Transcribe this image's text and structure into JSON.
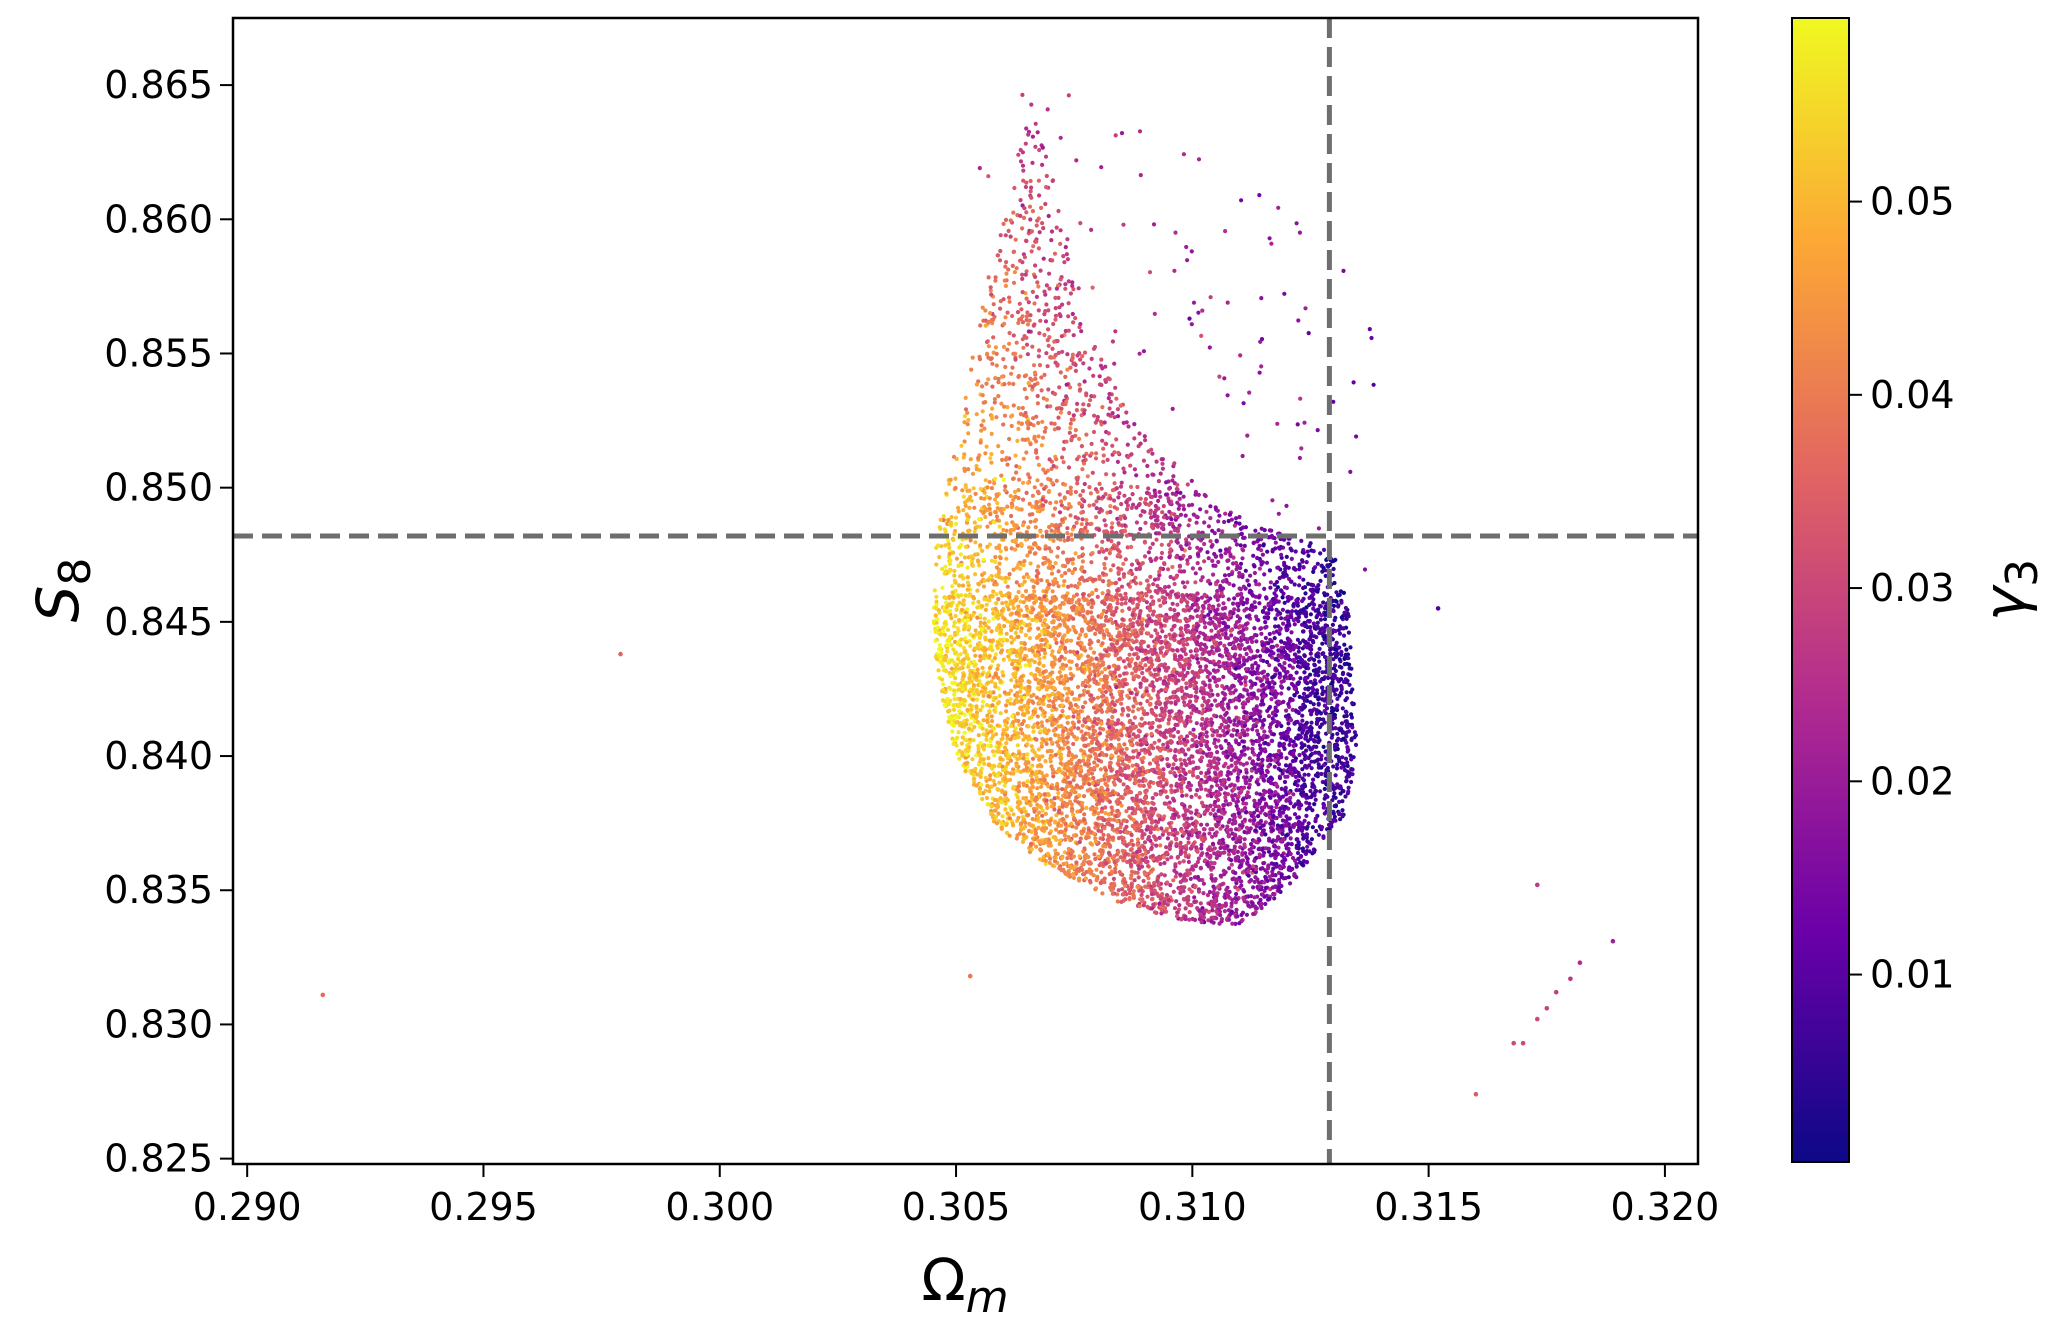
{
  "chart_data": {
    "type": "scatter",
    "title": "",
    "xlabel": "Ω_m",
    "ylabel": "S_8",
    "xlim": [
      0.2897,
      0.3207
    ],
    "ylim": [
      0.8248,
      0.8675
    ],
    "x_ticks": [
      "0.290",
      "0.295",
      "0.300",
      "0.305",
      "0.310",
      "0.315",
      "0.320"
    ],
    "y_ticks": [
      "0.825",
      "0.830",
      "0.835",
      "0.840",
      "0.845",
      "0.850",
      "0.855",
      "0.860",
      "0.865"
    ],
    "grid": false,
    "reference_lines": {
      "vertical_x": 0.3129,
      "horizontal_y": 0.8482,
      "style": "dashed",
      "color": "#6e6e6e"
    },
    "colorbar": {
      "label": "γ_3",
      "colormap": "plasma",
      "range": [
        0.0003,
        0.0595
      ],
      "ticks": [
        "0.01",
        "0.02",
        "0.03",
        "0.04",
        "0.05"
      ],
      "colors": [
        "#0d0887",
        "#6a00a8",
        "#b12a90",
        "#e16462",
        "#fca636",
        "#f0f921"
      ]
    },
    "series": [
      {
        "name": "",
        "cloud": {
          "point_count": 9000,
          "shape": "crescent",
          "left_edge": [
            [
              0.3045,
              0.8455
            ],
            [
              0.3046,
              0.8485
            ],
            [
              0.305,
              0.8515
            ],
            [
              0.3052,
              0.8535
            ],
            [
              0.3055,
              0.8565
            ],
            [
              0.3059,
              0.8595
            ],
            [
              0.3063,
              0.8625
            ],
            [
              0.3066,
              0.8645
            ]
          ],
          "right_edge": [
            [
              0.3066,
              0.8645
            ],
            [
              0.307,
              0.862
            ],
            [
              0.3078,
              0.856
            ],
            [
              0.3088,
              0.8525
            ],
            [
              0.31,
              0.85
            ],
            [
              0.3115,
              0.8485
            ],
            [
              0.3125,
              0.848
            ],
            [
              0.313,
              0.8475
            ],
            [
              0.3133,
              0.8455
            ],
            [
              0.3135,
              0.84
            ],
            [
              0.3132,
              0.8378
            ]
          ],
          "bottom_edge": [
            [
              0.3132,
              0.8378
            ],
            [
              0.312,
              0.835
            ],
            [
              0.311,
              0.8337
            ],
            [
              0.31,
              0.8338
            ],
            [
              0.3085,
              0.8345
            ],
            [
              0.307,
              0.8358
            ],
            [
              0.3058,
              0.8375
            ],
            [
              0.305,
              0.84
            ],
            [
              0.3046,
              0.843
            ],
            [
              0.3045,
              0.8455
            ]
          ],
          "color_gradient": "yellow on the left edge, orange and magenta through the middle, dark purple near x = 0.3125"
        }
      }
    ],
    "outliers": [
      {
        "x": 0.2916,
        "y": 0.8311,
        "c": 0.037
      },
      {
        "x": 0.2979,
        "y": 0.8438,
        "c": 0.036
      },
      {
        "x": 0.3053,
        "y": 0.8318,
        "c": 0.039
      },
      {
        "x": 0.3152,
        "y": 0.8455,
        "c": 0.009
      },
      {
        "x": 0.316,
        "y": 0.8274,
        "c": 0.034
      },
      {
        "x": 0.3168,
        "y": 0.8293,
        "c": 0.03
      },
      {
        "x": 0.317,
        "y": 0.8293,
        "c": 0.03
      },
      {
        "x": 0.3173,
        "y": 0.8352,
        "c": 0.027
      },
      {
        "x": 0.3173,
        "y": 0.8302,
        "c": 0.03
      },
      {
        "x": 0.3175,
        "y": 0.8306,
        "c": 0.029
      },
      {
        "x": 0.3177,
        "y": 0.8312,
        "c": 0.028
      },
      {
        "x": 0.318,
        "y": 0.8317,
        "c": 0.026
      },
      {
        "x": 0.3182,
        "y": 0.8323,
        "c": 0.024
      },
      {
        "x": 0.3189,
        "y": 0.8331,
        "c": 0.021
      }
    ]
  }
}
